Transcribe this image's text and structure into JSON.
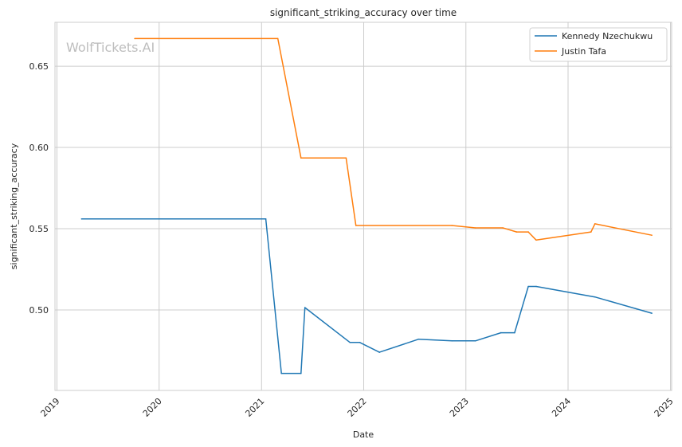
{
  "chart_data": {
    "type": "line",
    "title": "significant_striking_accuracy over time",
    "xlabel": "Date",
    "ylabel": "significant_striking_accuracy",
    "watermark": "WolfTickets.AI",
    "x_ticks": [
      "2019",
      "2020",
      "2021",
      "2022",
      "2023",
      "2024",
      "2025"
    ],
    "y_ticks": [
      "0.50",
      "0.55",
      "0.60",
      "0.65"
    ],
    "ylim": [
      0.4505,
      0.677
    ],
    "xlim": [
      "2018-12-25",
      "2025-01-05"
    ],
    "grid": true,
    "legend_position": "top-right",
    "series": [
      {
        "name": "Kennedy Nzechukwu",
        "color": "#1f77b4",
        "points": [
          [
            "2019-03-30",
            0.556
          ],
          [
            "2021-01-16",
            0.556
          ],
          [
            "2021-03-13",
            0.461
          ],
          [
            "2021-05-22",
            0.461
          ],
          [
            "2021-06-05",
            0.5015
          ],
          [
            "2021-11-13",
            0.48
          ],
          [
            "2021-12-18",
            0.48
          ],
          [
            "2022-02-26",
            0.474
          ],
          [
            "2022-07-16",
            0.482
          ],
          [
            "2022-11-12",
            0.481
          ],
          [
            "2023-02-04",
            0.481
          ],
          [
            "2023-05-06",
            0.486
          ],
          [
            "2023-06-24",
            0.486
          ],
          [
            "2023-08-12",
            0.5145
          ],
          [
            "2023-09-09",
            0.5145
          ],
          [
            "2024-04-06",
            0.508
          ],
          [
            "2024-10-26",
            0.498
          ]
        ]
      },
      {
        "name": "Justin Tafa",
        "color": "#ff7f0e",
        "points": [
          [
            "2019-10-06",
            0.667
          ],
          [
            "2021-02-28",
            0.667
          ],
          [
            "2021-05-22",
            0.5935
          ],
          [
            "2021-10-30",
            0.5935
          ],
          [
            "2021-12-04",
            0.552
          ],
          [
            "2022-11-12",
            0.552
          ],
          [
            "2023-02-04",
            0.5505
          ],
          [
            "2023-05-13",
            0.5505
          ],
          [
            "2023-07-01",
            0.548
          ],
          [
            "2023-08-12",
            0.548
          ],
          [
            "2023-09-09",
            0.543
          ],
          [
            "2024-03-23",
            0.548
          ],
          [
            "2024-04-06",
            0.553
          ],
          [
            "2024-10-26",
            0.546
          ]
        ]
      }
    ]
  }
}
